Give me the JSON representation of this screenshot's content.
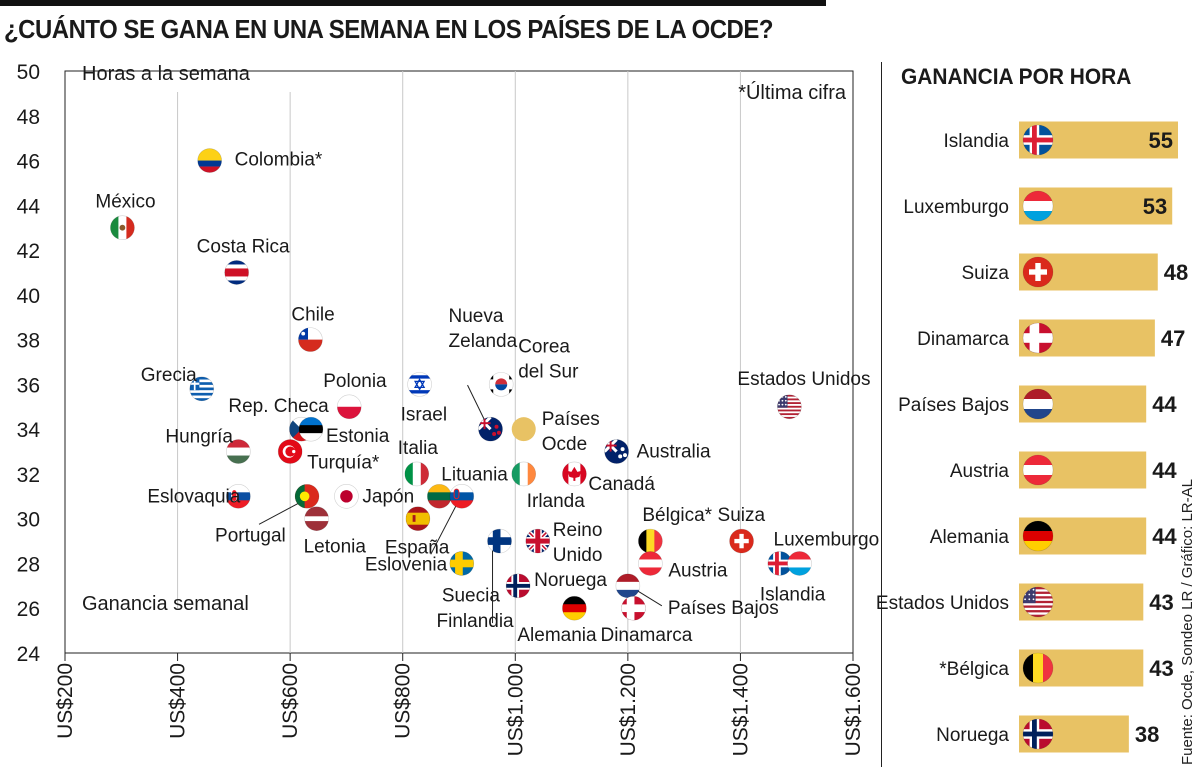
{
  "title": "¿CUÁNTO SE GANA EN UNA SEMANA EN LOS PAÍSES DE LA OCDE?",
  "credit": "Fuente: Ocde, Sondeo LR / Gráfico: LR-AL",
  "colors": {
    "bar": "#e8c264",
    "promedio": "#e8c264",
    "text": "#1a1a1a",
    "grid": "#c8c8c8"
  },
  "chart_data": [
    {
      "type": "scatter",
      "title": "¿CUÁNTO SE GANA EN UNA SEMANA EN LOS PAÍSES DE LA OCDE?",
      "ylabel": "Horas a la semana",
      "xlabel": "Ganancia semanal",
      "note": "*Última cifra",
      "xlim": [
        200,
        1600
      ],
      "ylim": [
        24,
        50
      ],
      "xticks": [
        {
          "v": 200,
          "label": "US$200"
        },
        {
          "v": 400,
          "label": "US$400"
        },
        {
          "v": 600,
          "label": "US$600"
        },
        {
          "v": 800,
          "label": "US$800"
        },
        {
          "v": 1000,
          "label": "US$1.000"
        },
        {
          "v": 1200,
          "label": "US$1.200"
        },
        {
          "v": 1400,
          "label": "US$1.400"
        },
        {
          "v": 1600,
          "label": "US$1.600"
        }
      ],
      "yticks": [
        24,
        26,
        28,
        30,
        32,
        34,
        36,
        38,
        40,
        42,
        44,
        46,
        48,
        50
      ],
      "points": [
        {
          "country": "México",
          "x": 302,
          "y": 43,
          "flag": "mexico"
        },
        {
          "country": "Colombia*",
          "x": 457,
          "y": 46,
          "flag": "colombia"
        },
        {
          "country": "Costa Rica",
          "x": 505,
          "y": 41,
          "flag": "costarica"
        },
        {
          "country": "Chile",
          "x": 636,
          "y": 38,
          "flag": "chile"
        },
        {
          "country": "Grecia",
          "x": 443,
          "y": 35.8,
          "flag": "grecia"
        },
        {
          "country": "Polonia",
          "x": 705,
          "y": 35,
          "flag": "polonia"
        },
        {
          "country": "Rep. Checa",
          "x": 620,
          "y": 34,
          "flag": "checa"
        },
        {
          "country": "Estonia",
          "x": 637,
          "y": 34,
          "flag": "estonia"
        },
        {
          "country": "Hungría",
          "x": 508,
          "y": 33,
          "flag": "hungria"
        },
        {
          "country": "Turquía*",
          "x": 600,
          "y": 33,
          "flag": "turquia"
        },
        {
          "country": "Eslovaquia",
          "x": 508,
          "y": 31,
          "flag": "eslovaquia"
        },
        {
          "country": "Portugal",
          "x": 630,
          "y": 31,
          "flag": "portugal"
        },
        {
          "country": "Japón",
          "x": 700,
          "y": 31,
          "flag": "japon"
        },
        {
          "country": "Letonia",
          "x": 647,
          "y": 30,
          "flag": "letonia"
        },
        {
          "country": "Israel",
          "x": 830,
          "y": 36,
          "flag": "israel"
        },
        {
          "country": "Nueva Zelanda",
          "x": 956,
          "y": 34,
          "flag": "nuevazelanda"
        },
        {
          "country": "Corea del Sur",
          "x": 975,
          "y": 36,
          "flag": "corea"
        },
        {
          "country": "Países Ocde",
          "x": 1015,
          "y": 34,
          "flag": "ocde"
        },
        {
          "country": "Italia",
          "x": 825,
          "y": 32,
          "flag": "italia"
        },
        {
          "country": "Lituania",
          "x": 865,
          "y": 31,
          "flag": "lituania"
        },
        {
          "country": "Eslovenia",
          "x": 905,
          "y": 31,
          "flag": "eslovenia"
        },
        {
          "country": "España",
          "x": 827,
          "y": 30,
          "flag": "espana"
        },
        {
          "country": "Suecia",
          "x": 905,
          "y": 28,
          "flag": "suecia"
        },
        {
          "country": "Irlanda",
          "x": 1015,
          "y": 32,
          "flag": "irlanda"
        },
        {
          "country": "Canadá",
          "x": 1105,
          "y": 32,
          "flag": "canada"
        },
        {
          "country": "Australia",
          "x": 1180,
          "y": 33,
          "flag": "australia"
        },
        {
          "country": "Finlandia",
          "x": 972,
          "y": 29,
          "flag": "finlandia"
        },
        {
          "country": "Reino Unido",
          "x": 1040,
          "y": 29,
          "flag": "reinounido"
        },
        {
          "country": "Noruega",
          "x": 1005,
          "y": 27,
          "flag": "noruega"
        },
        {
          "country": "Alemania",
          "x": 1105,
          "y": 26,
          "flag": "alemania"
        },
        {
          "country": "Bélgica*",
          "x": 1240,
          "y": 29,
          "flag": "belgica"
        },
        {
          "country": "Austria",
          "x": 1240,
          "y": 28,
          "flag": "austria"
        },
        {
          "country": "Países Bajos",
          "x": 1200,
          "y": 27,
          "flag": "paisesbajos"
        },
        {
          "country": "Dinamarca",
          "x": 1210,
          "y": 26,
          "flag": "dinamarca"
        },
        {
          "country": "Suiza",
          "x": 1402,
          "y": 29,
          "flag": "suiza"
        },
        {
          "country": "Islandia",
          "x": 1470,
          "y": 28,
          "flag": "islandia"
        },
        {
          "country": "Luxemburgo",
          "x": 1505,
          "y": 28,
          "flag": "luxemburgo"
        },
        {
          "country": "Estados Unidos",
          "x": 1487,
          "y": 35,
          "flag": "eeuu"
        }
      ]
    },
    {
      "type": "bar",
      "title": "GANANCIA POR HORA",
      "xlim": [
        0,
        55
      ],
      "categories": [
        "Islandia",
        "Luxemburgo",
        "Suiza",
        "Dinamarca",
        "Países Bajos",
        "Austria",
        "Alemania",
        "Estados Unidos",
        "*Bélgica",
        "Noruega"
      ],
      "values": [
        55,
        53,
        48,
        47,
        44,
        44,
        44,
        43,
        43,
        38
      ],
      "flags": [
        "islandia",
        "luxemburgo",
        "suiza",
        "dinamarca",
        "paisesbajos",
        "austria",
        "alemania",
        "eeuu",
        "belgica",
        "noruega"
      ]
    }
  ]
}
